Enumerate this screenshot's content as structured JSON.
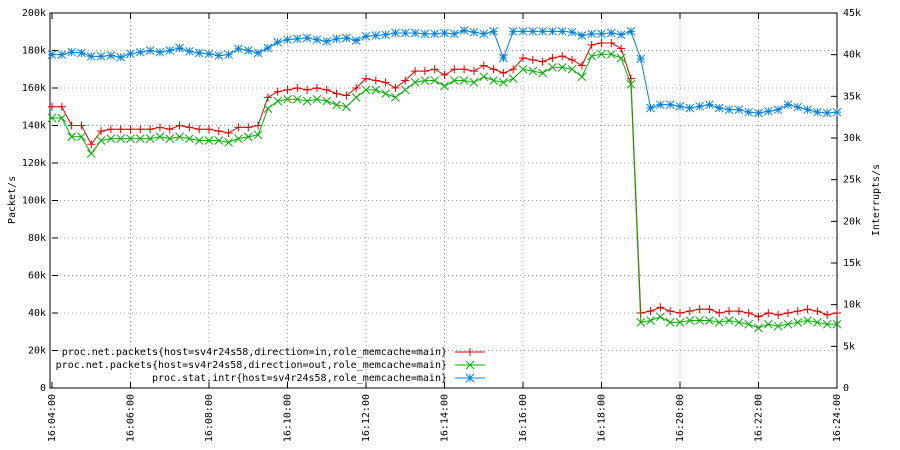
{
  "chart_data": {
    "type": "line",
    "y_label": "Packet/s",
    "y2_label": "Interrupts/s",
    "x": [
      "16:04:00",
      "16:04:15",
      "16:04:30",
      "16:04:45",
      "16:05:00",
      "16:05:15",
      "16:05:30",
      "16:05:45",
      "16:06:00",
      "16:06:15",
      "16:06:30",
      "16:06:45",
      "16:07:00",
      "16:07:15",
      "16:07:30",
      "16:07:45",
      "16:08:00",
      "16:08:15",
      "16:08:30",
      "16:08:45",
      "16:09:00",
      "16:09:15",
      "16:09:30",
      "16:09:45",
      "16:10:00",
      "16:10:15",
      "16:10:30",
      "16:10:45",
      "16:11:00",
      "16:11:15",
      "16:11:30",
      "16:11:45",
      "16:12:00",
      "16:12:15",
      "16:12:30",
      "16:12:45",
      "16:13:00",
      "16:13:15",
      "16:13:30",
      "16:13:45",
      "16:14:00",
      "16:14:15",
      "16:14:30",
      "16:14:45",
      "16:15:00",
      "16:15:15",
      "16:15:30",
      "16:15:45",
      "16:16:00",
      "16:16:15",
      "16:16:30",
      "16:16:45",
      "16:17:00",
      "16:17:15",
      "16:17:30",
      "16:17:45",
      "16:18:00",
      "16:18:15",
      "16:18:30",
      "16:18:45",
      "16:19:00",
      "16:19:15",
      "16:19:30",
      "16:19:45",
      "16:20:00",
      "16:20:15",
      "16:20:30",
      "16:20:45",
      "16:21:00",
      "16:21:15",
      "16:21:30",
      "16:21:45",
      "16:22:00",
      "16:22:15",
      "16:22:30",
      "16:22:45",
      "16:23:00",
      "16:23:15",
      "16:23:30",
      "16:23:45",
      "16:24:00"
    ],
    "xlim": [
      "16:04:00",
      "16:24:00"
    ],
    "xticks": [
      "16:04:00",
      "16:06:00",
      "16:08:00",
      "16:10:00",
      "16:12:00",
      "16:14:00",
      "16:16:00",
      "16:18:00",
      "16:20:00",
      "16:22:00",
      "16:24:00"
    ],
    "ylim": [
      0,
      200000
    ],
    "yticks": [
      {
        "value": 0,
        "label": "0"
      },
      {
        "value": 20000,
        "label": "20k"
      },
      {
        "value": 40000,
        "label": "40k"
      },
      {
        "value": 60000,
        "label": "60k"
      },
      {
        "value": 80000,
        "label": "80k"
      },
      {
        "value": 100000,
        "label": "100k"
      },
      {
        "value": 120000,
        "label": "120k"
      },
      {
        "value": 140000,
        "label": "140k"
      },
      {
        "value": 160000,
        "label": "160k"
      },
      {
        "value": 180000,
        "label": "180k"
      },
      {
        "value": 200000,
        "label": "200k"
      }
    ],
    "y2lim": [
      0,
      45000
    ],
    "y2ticks": [
      {
        "value": 0,
        "label": "0"
      },
      {
        "value": 5000,
        "label": "5k"
      },
      {
        "value": 10000,
        "label": "10k"
      },
      {
        "value": 15000,
        "label": "15k"
      },
      {
        "value": 20000,
        "label": "20k"
      },
      {
        "value": 25000,
        "label": "25k"
      },
      {
        "value": 30000,
        "label": "30k"
      },
      {
        "value": 35000,
        "label": "35k"
      },
      {
        "value": 40000,
        "label": "40k"
      },
      {
        "value": 45000,
        "label": "45k"
      }
    ],
    "grid": true,
    "legend": "bottom-left",
    "series": [
      {
        "name": "proc.net.packets{host=sv4r24s58,direction=in,role_memcache=main}",
        "color": "#e00000",
        "marker": "plus",
        "values": [
          150000,
          150000,
          140000,
          140000,
          130000,
          137000,
          138000,
          138000,
          138000,
          138000,
          138000,
          139000,
          138000,
          140000,
          139000,
          138000,
          138000,
          137000,
          136000,
          139000,
          139000,
          140000,
          155000,
          158000,
          159000,
          160000,
          159000,
          160000,
          159000,
          157000,
          156000,
          160000,
          165000,
          164000,
          163000,
          160000,
          164000,
          169000,
          169000,
          170000,
          167000,
          170000,
          170000,
          169000,
          172000,
          170000,
          168000,
          170000,
          176000,
          175000,
          174000,
          176000,
          177000,
          175000,
          172000,
          183000,
          184000,
          184000,
          181000,
          165000,
          40000,
          41000,
          43000,
          41000,
          40000,
          41000,
          42000,
          42000,
          40000,
          41000,
          41000,
          40000,
          38000,
          40000,
          39000,
          40000,
          41000,
          42000,
          41000,
          39000,
          40000
        ]
      },
      {
        "name": "proc.net.packets{host=sv4r24s58,direction=out,role_memcache=main}",
        "color": "#00b000",
        "marker": "cross",
        "values": [
          144000,
          144000,
          134000,
          134000,
          125000,
          132000,
          133000,
          133000,
          133000,
          133000,
          133000,
          134000,
          133000,
          134000,
          133000,
          132000,
          132000,
          132000,
          131000,
          133000,
          134000,
          135000,
          149000,
          153000,
          154000,
          154000,
          153000,
          154000,
          153000,
          151000,
          150000,
          155000,
          159000,
          159000,
          157000,
          155000,
          159000,
          163000,
          164000,
          164000,
          161000,
          164000,
          164000,
          163000,
          166000,
          164000,
          163000,
          165000,
          170000,
          169000,
          168000,
          171000,
          171000,
          170000,
          166000,
          177000,
          178000,
          178000,
          176000,
          162000,
          35000,
          36000,
          38000,
          35000,
          35000,
          36000,
          36000,
          36000,
          35000,
          36000,
          35000,
          34000,
          32000,
          34000,
          33000,
          34000,
          35000,
          36000,
          35000,
          34000,
          34000
        ]
      },
      {
        "name": "proc.stat.intr{host=sv4r24s58,role_memcache=main}",
        "color": "#0080e0",
        "marker": "star",
        "axis": "y2",
        "values": [
          40000,
          40000,
          40300,
          40200,
          39800,
          39800,
          39900,
          39700,
          40100,
          40300,
          40500,
          40300,
          40500,
          40800,
          40400,
          40200,
          40100,
          39900,
          40000,
          40700,
          40500,
          40200,
          40800,
          41500,
          41800,
          41900,
          42000,
          41800,
          41600,
          41900,
          42000,
          41700,
          42200,
          42300,
          42400,
          42600,
          42600,
          42600,
          42500,
          42500,
          42600,
          42500,
          42900,
          42700,
          42500,
          42800,
          39600,
          42800,
          42800,
          42800,
          42800,
          42800,
          42800,
          42700,
          42300,
          42500,
          42500,
          42600,
          42400,
          42800,
          39500,
          33600,
          34000,
          34000,
          33800,
          33600,
          33800,
          34000,
          33600,
          33400,
          33400,
          33100,
          33000,
          33200,
          33400,
          34000,
          33700,
          33400,
          33100,
          33000,
          33100
        ]
      }
    ]
  }
}
